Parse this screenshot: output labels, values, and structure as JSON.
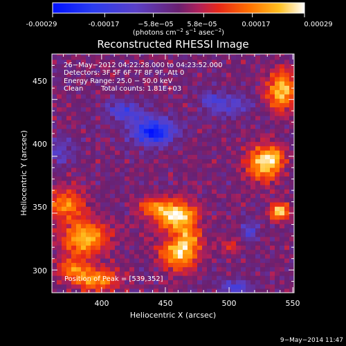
{
  "colorbar": {
    "tick_labels": [
      "-0.00029",
      "-0.00017",
      "−5.8e−05",
      "5.8e−05",
      "0.00017",
      "0.00029"
    ],
    "tick_values": [
      -0.00029,
      -0.00017,
      -5.8e-05,
      5.8e-05,
      0.00017,
      0.00029
    ],
    "range": [
      -0.00029,
      0.00029
    ],
    "units_parts": [
      "(photons cm",
      "−2",
      " s",
      "−1",
      " asec",
      "−2",
      ")"
    ]
  },
  "chart_data": {
    "type": "heatmap",
    "title": "Reconstructed RHESSI Image",
    "xlabel": "Heliocentric X (arcsec)",
    "ylabel": "Heliocentric Y (arcsec)",
    "xlim": [
      361,
      551
    ],
    "ylim": [
      280,
      490
    ],
    "x_ticks": [
      400,
      450,
      500,
      550
    ],
    "y_ticks": [
      300,
      350,
      400,
      450
    ],
    "x_tick_labels": [
      "400",
      "450",
      "500",
      "550"
    ],
    "y_tick_labels": [
      "300",
      "350",
      "400",
      "450"
    ],
    "value_range": [
      -0.00029,
      0.00029
    ],
    "peak_position": [
      539,
      352
    ],
    "sources": [
      {
        "x": 458,
        "y": 348,
        "sx": 11,
        "sy": 9,
        "amp": 0.00029
      },
      {
        "x": 460,
        "y": 314,
        "sx": 10,
        "sy": 9,
        "amp": 0.00025
      },
      {
        "x": 468,
        "y": 328,
        "sx": 7,
        "sy": 7,
        "amp": 0.00016
      },
      {
        "x": 440,
        "y": 356,
        "sx": 7,
        "sy": 5,
        "amp": 0.00016
      },
      {
        "x": 387,
        "y": 328,
        "sx": 12,
        "sy": 10,
        "amp": 0.00024
      },
      {
        "x": 372,
        "y": 358,
        "sx": 10,
        "sy": 10,
        "amp": 0.00018
      },
      {
        "x": 396,
        "y": 292,
        "sx": 12,
        "sy": 7,
        "amp": 0.0002
      },
      {
        "x": 377,
        "y": 302,
        "sx": 8,
        "sy": 7,
        "amp": 0.00015
      },
      {
        "x": 540,
        "y": 352,
        "sx": 5,
        "sy": 5,
        "amp": 0.00029
      },
      {
        "x": 527,
        "y": 394,
        "sx": 9,
        "sy": 11,
        "amp": 0.00024
      },
      {
        "x": 541,
        "y": 458,
        "sx": 8,
        "sy": 12,
        "amp": 0.00024
      },
      {
        "x": 536,
        "y": 400,
        "sx": 5,
        "sy": 6,
        "amp": 0.00014
      },
      {
        "x": 500,
        "y": 322,
        "sx": 6,
        "sy": 5,
        "amp": 8e-05
      },
      {
        "x": 441,
        "y": 422,
        "sx": 11,
        "sy": 8,
        "amp": -0.00027
      },
      {
        "x": 418,
        "y": 440,
        "sx": 10,
        "sy": 6,
        "amp": -0.00015
      },
      {
        "x": 500,
        "y": 445,
        "sx": 12,
        "sy": 6,
        "amp": -0.00012
      },
      {
        "x": 368,
        "y": 405,
        "sx": 7,
        "sy": 8,
        "amp": -0.0001
      },
      {
        "x": 505,
        "y": 284,
        "sx": 8,
        "sy": 5,
        "amp": -0.00014
      },
      {
        "x": 516,
        "y": 335,
        "sx": 5,
        "sy": 6,
        "amp": -0.00013
      },
      {
        "x": 485,
        "y": 450,
        "sx": 6,
        "sy": 4,
        "amp": -0.0001
      }
    ]
  },
  "info": {
    "time_range": "26−May−2012 04:22:28.000 to 04:23:52.000",
    "detectors": "Detectors: 3F 5F 6F 7F 8F 9F, Att 0",
    "energy": "Energy Range: 25.0 − 50.0 keV",
    "method": "Clean",
    "counts": "Total counts: 1.81E+03",
    "peak": "Position of Peak = [539,352]"
  },
  "footer": {
    "date": "9−May−2014 11:47"
  }
}
